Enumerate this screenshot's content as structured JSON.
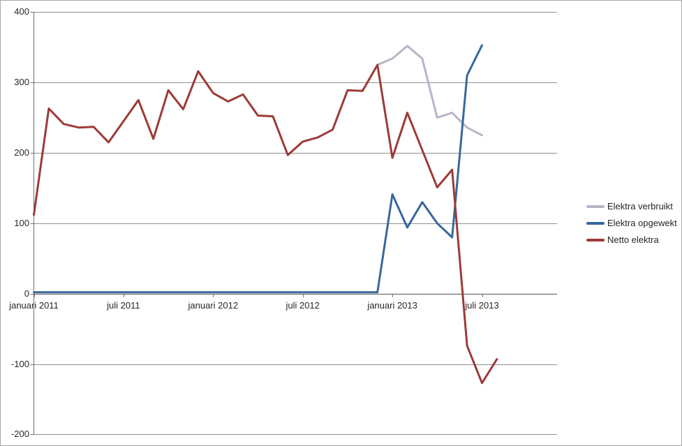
{
  "chart_data": {
    "type": "line",
    "title": "",
    "grid": true,
    "legend_position": "right",
    "months": [
      "2011-01",
      "2011-02",
      "2011-03",
      "2011-04",
      "2011-05",
      "2011-06",
      "2011-07",
      "2011-08",
      "2011-09",
      "2011-10",
      "2011-11",
      "2011-12",
      "2012-01",
      "2012-02",
      "2012-03",
      "2012-04",
      "2012-05",
      "2012-06",
      "2012-07",
      "2012-08",
      "2012-09",
      "2012-10",
      "2012-11",
      "2012-12",
      "2013-01",
      "2013-02",
      "2013-03",
      "2013-04",
      "2013-05",
      "2013-06",
      "2013-07",
      "2013-08"
    ],
    "x_axis": {
      "tick_labels": [
        "januari 2011",
        "juli 2011",
        "januari 2012",
        "juli 2012",
        "januari 2013",
        "juli 2013"
      ],
      "tick_month_indices": [
        0,
        6,
        12,
        18,
        24,
        30
      ]
    },
    "y_axis": {
      "tick_labels": [
        "400",
        "300",
        "200",
        "100",
        "0",
        "-100",
        "-200"
      ],
      "tick_values": [
        400,
        300,
        200,
        100,
        0,
        -100,
        -200
      ],
      "ylim": [
        -200,
        400
      ]
    },
    "series": [
      {
        "name": "Elektra verbruikt",
        "color": "#b8b4c9",
        "values": [
          null,
          null,
          null,
          null,
          null,
          null,
          null,
          null,
          null,
          null,
          null,
          null,
          null,
          null,
          null,
          null,
          null,
          null,
          null,
          null,
          null,
          null,
          null,
          325,
          334,
          352,
          334,
          250,
          257,
          236,
          225,
          null
        ]
      },
      {
        "name": "Elektra opgewekt",
        "color": "#38689b",
        "values": [
          2,
          2,
          2,
          2,
          2,
          2,
          2,
          2,
          2,
          2,
          2,
          2,
          2,
          2,
          2,
          2,
          2,
          2,
          2,
          2,
          2,
          2,
          2,
          2,
          141,
          94,
          130,
          100,
          80,
          310,
          353,
          null
        ]
      },
      {
        "name": "Netto elektra",
        "color": "#9c3b38",
        "values": [
          112,
          263,
          241,
          236,
          237,
          215,
          245,
          275,
          220,
          289,
          262,
          316,
          285,
          273,
          283,
          253,
          252,
          197,
          216,
          222,
          233,
          289,
          288,
          325,
          193,
          257,
          204,
          151,
          176,
          -74,
          -127,
          -93
        ]
      }
    ]
  },
  "colors": {
    "gridline": "#8f8f8f",
    "axis": "#6f6f6f",
    "text": "#262626",
    "border": "#a8a8a8",
    "background": "#ffffff"
  }
}
